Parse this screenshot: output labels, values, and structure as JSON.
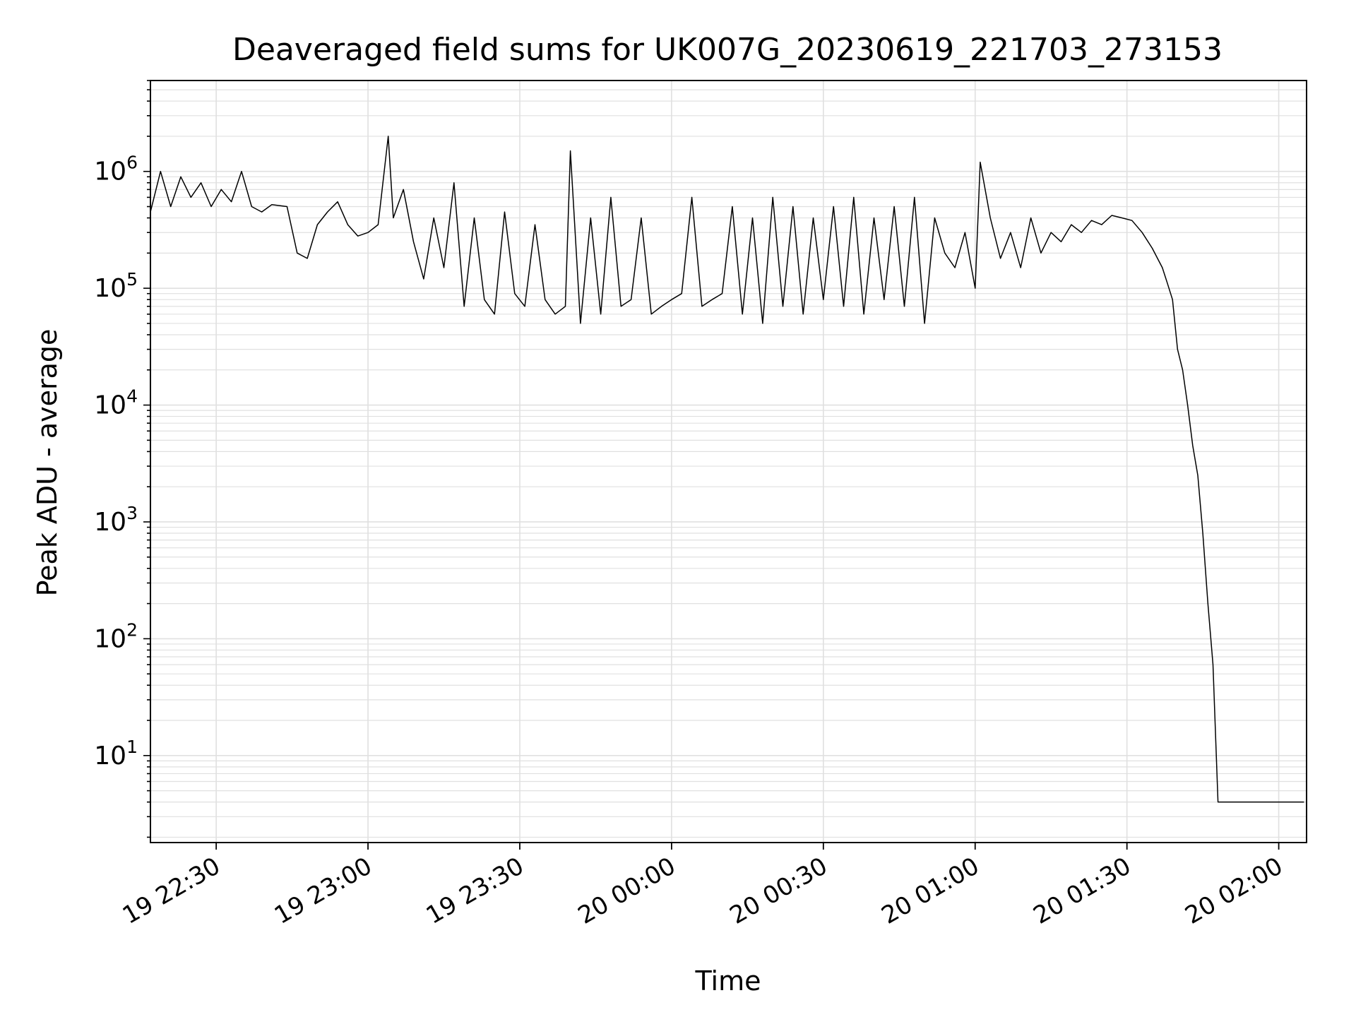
{
  "chart_data": {
    "type": "line",
    "title": "Deaveraged field sums for UK007G_20230619_221703_273153",
    "xlabel": "Time",
    "ylabel": "Peak ADU - average",
    "xlim": [
      "2023-06-19T22:17:00",
      "2023-06-20T02:05:30"
    ],
    "ylim": [
      1.8,
      6000000
    ],
    "yscale": "log",
    "grid": true,
    "line_color": "#000000",
    "grid_color": "#e0e0e0",
    "x_ticks": [
      {
        "value": "2023-06-19T22:30:00",
        "label": "19 22:30"
      },
      {
        "value": "2023-06-19T23:00:00",
        "label": "19 23:00"
      },
      {
        "value": "2023-06-19T23:30:00",
        "label": "19 23:30"
      },
      {
        "value": "2023-06-20T00:00:00",
        "label": "20 00:00"
      },
      {
        "value": "2023-06-20T00:30:00",
        "label": "20 00:30"
      },
      {
        "value": "2023-06-20T01:00:00",
        "label": "20 01:00"
      },
      {
        "value": "2023-06-20T01:30:00",
        "label": "20 01:30"
      },
      {
        "value": "2023-06-20T02:00:00",
        "label": "20 02:00"
      }
    ],
    "y_ticks": [
      {
        "value": 10,
        "base": "10",
        "exp": "1"
      },
      {
        "value": 100,
        "base": "10",
        "exp": "2"
      },
      {
        "value": 1000,
        "base": "10",
        "exp": "3"
      },
      {
        "value": 10000,
        "base": "10",
        "exp": "4"
      },
      {
        "value": 100000,
        "base": "10",
        "exp": "5"
      },
      {
        "value": 1000000,
        "base": "10",
        "exp": "6"
      }
    ],
    "series": [
      {
        "x": [
          "2023-06-19T22:17:00",
          "2023-06-19T22:19:00",
          "2023-06-19T22:21:00",
          "2023-06-19T22:23:00",
          "2023-06-19T22:25:00",
          "2023-06-19T22:27:00",
          "2023-06-19T22:29:00",
          "2023-06-19T22:31:00",
          "2023-06-19T22:33:00",
          "2023-06-19T22:35:00",
          "2023-06-19T22:37:00",
          "2023-06-19T22:39:00",
          "2023-06-19T22:41:00",
          "2023-06-19T22:44:00",
          "2023-06-19T22:46:00",
          "2023-06-19T22:48:00",
          "2023-06-19T22:50:00",
          "2023-06-19T22:52:00",
          "2023-06-19T22:54:00",
          "2023-06-19T22:56:00",
          "2023-06-19T22:58:00",
          "2023-06-19T23:00:00",
          "2023-06-19T23:02:00",
          "2023-06-19T23:04:00",
          "2023-06-19T23:05:00",
          "2023-06-19T23:07:00",
          "2023-06-19T23:09:00",
          "2023-06-19T23:11:00",
          "2023-06-19T23:13:00",
          "2023-06-19T23:15:00",
          "2023-06-19T23:17:00",
          "2023-06-19T23:19:00",
          "2023-06-19T23:21:00",
          "2023-06-19T23:23:00",
          "2023-06-19T23:25:00",
          "2023-06-19T23:27:00",
          "2023-06-19T23:29:00",
          "2023-06-19T23:31:00",
          "2023-06-19T23:33:00",
          "2023-06-19T23:35:00",
          "2023-06-19T23:37:00",
          "2023-06-19T23:39:00",
          "2023-06-19T23:40:00",
          "2023-06-19T23:42:00",
          "2023-06-19T23:44:00",
          "2023-06-19T23:46:00",
          "2023-06-19T23:48:00",
          "2023-06-19T23:50:00",
          "2023-06-19T23:52:00",
          "2023-06-19T23:54:00",
          "2023-06-19T23:56:00",
          "2023-06-19T23:58:00",
          "2023-06-20T00:00:00",
          "2023-06-20T00:02:00",
          "2023-06-20T00:04:00",
          "2023-06-20T00:06:00",
          "2023-06-20T00:08:00",
          "2023-06-20T00:10:00",
          "2023-06-20T00:12:00",
          "2023-06-20T00:14:00",
          "2023-06-20T00:16:00",
          "2023-06-20T00:18:00",
          "2023-06-20T00:20:00",
          "2023-06-20T00:22:00",
          "2023-06-20T00:24:00",
          "2023-06-20T00:26:00",
          "2023-06-20T00:28:00",
          "2023-06-20T00:30:00",
          "2023-06-20T00:32:00",
          "2023-06-20T00:34:00",
          "2023-06-20T00:36:00",
          "2023-06-20T00:38:00",
          "2023-06-20T00:40:00",
          "2023-06-20T00:42:00",
          "2023-06-20T00:44:00",
          "2023-06-20T00:46:00",
          "2023-06-20T00:48:00",
          "2023-06-20T00:50:00",
          "2023-06-20T00:52:00",
          "2023-06-20T00:54:00",
          "2023-06-20T00:56:00",
          "2023-06-20T00:58:00",
          "2023-06-20T01:00:00",
          "2023-06-20T01:01:00",
          "2023-06-20T01:03:00",
          "2023-06-20T01:05:00",
          "2023-06-20T01:07:00",
          "2023-06-20T01:09:00",
          "2023-06-20T01:11:00",
          "2023-06-20T01:13:00",
          "2023-06-20T01:15:00",
          "2023-06-20T01:17:00",
          "2023-06-20T01:19:00",
          "2023-06-20T01:21:00",
          "2023-06-20T01:23:00",
          "2023-06-20T01:25:00",
          "2023-06-20T01:27:00",
          "2023-06-20T01:29:00",
          "2023-06-20T01:31:00",
          "2023-06-20T01:33:00",
          "2023-06-20T01:35:00",
          "2023-06-20T01:37:00",
          "2023-06-20T01:38:00",
          "2023-06-20T01:39:00",
          "2023-06-20T01:40:00",
          "2023-06-20T01:41:00",
          "2023-06-20T01:42:00",
          "2023-06-20T01:43:00",
          "2023-06-20T01:44:00",
          "2023-06-20T01:45:00",
          "2023-06-20T01:46:00",
          "2023-06-20T01:47:00",
          "2023-06-20T01:48:00",
          "2023-06-20T01:50:00",
          "2023-06-20T01:52:00",
          "2023-06-20T01:54:00",
          "2023-06-20T01:56:00",
          "2023-06-20T01:58:00",
          "2023-06-20T02:00:00",
          "2023-06-20T02:02:00",
          "2023-06-20T02:05:00"
        ],
        "y": [
          450000,
          1000000,
          500000,
          900000,
          600000,
          800000,
          500000,
          700000,
          550000,
          1000000,
          500000,
          450000,
          520000,
          500000,
          200000,
          180000,
          350000,
          450000,
          550000,
          350000,
          280000,
          300000,
          350000,
          2000000,
          400000,
          700000,
          250000,
          120000,
          400000,
          150000,
          800000,
          70000,
          400000,
          80000,
          60000,
          450000,
          90000,
          70000,
          350000,
          80000,
          60000,
          70000,
          1500000,
          50000,
          400000,
          60000,
          600000,
          70000,
          80000,
          400000,
          60000,
          70000,
          80000,
          90000,
          600000,
          70000,
          80000,
          90000,
          500000,
          60000,
          400000,
          50000,
          600000,
          70000,
          500000,
          60000,
          400000,
          80000,
          500000,
          70000,
          600000,
          60000,
          400000,
          80000,
          500000,
          70000,
          600000,
          50000,
          400000,
          200000,
          150000,
          300000,
          100000,
          1200000,
          400000,
          180000,
          300000,
          150000,
          400000,
          200000,
          300000,
          250000,
          350000,
          300000,
          380000,
          350000,
          420000,
          400000,
          380000,
          300000,
          220000,
          150000,
          110000,
          80000,
          30000,
          20000,
          10000,
          4500,
          2500,
          800,
          200,
          60,
          4.0,
          4.0,
          4.0,
          4.0,
          4.0,
          4.0,
          4.0,
          4.0,
          4.0
        ]
      }
    ]
  }
}
